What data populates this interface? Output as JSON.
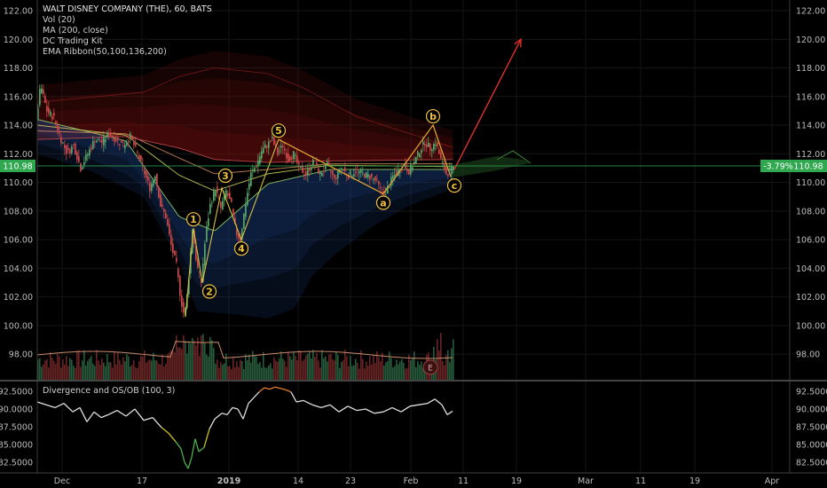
{
  "legend": {
    "title": "WALT DISNEY COMPANY (THE), 60, BATS",
    "vol": "Vol (20)",
    "ma": "MA (200, close)",
    "kit": "DC Trading Kit",
    "ribbon": "EMA Ribbon(50,100,136,200)",
    "oscillator": "Divergence and OS/OB (100, 3)"
  },
  "last_price": {
    "label": "110.98",
    "change_label": "-3.79%",
    "value": 110.98
  },
  "earnings_badge": "E",
  "colors": {
    "background": "#000000",
    "up": "#5aa36a",
    "down": "#c84a4a",
    "wave_label": "#f0c040",
    "price_badge": "#2fa84f",
    "projection_arrow": "#e0302a",
    "grid": "#151515",
    "osc_line": "#e0e0e0",
    "osc_low": "#8bc34a",
    "osc_high": "#e08030"
  },
  "chart_data": [
    {
      "type": "candlestick",
      "title": "WALT DISNEY COMPANY (THE), 60, BATS",
      "x_tick_labels": [
        "Dec",
        "17",
        "2019",
        "14",
        "23",
        "Feb",
        "11",
        "19",
        "Mar",
        "11",
        "19",
        "Apr"
      ],
      "y_tick_labels": [
        "122.00",
        "120.00",
        "118.00",
        "116.00",
        "114.00",
        "112.00",
        "110.00",
        "108.00",
        "106.00",
        "104.00",
        "102.00",
        "100.00",
        "98.00"
      ],
      "ylim": [
        96.5,
        122.5
      ],
      "price_path": [
        [
          0,
          114.3
        ],
        [
          5,
          116.8
        ],
        [
          12,
          115.0
        ],
        [
          20,
          114.5
        ],
        [
          28,
          113.0
        ],
        [
          35,
          112.0
        ],
        [
          42,
          112.6
        ],
        [
          50,
          111.0
        ],
        [
          58,
          112.0
        ],
        [
          66,
          113.0
        ],
        [
          74,
          112.8
        ],
        [
          82,
          113.4
        ],
        [
          90,
          113.0
        ],
        [
          98,
          112.6
        ],
        [
          106,
          113.2
        ],
        [
          114,
          112.0
        ],
        [
          120,
          111.0
        ],
        [
          128,
          109.6
        ],
        [
          134,
          110.6
        ],
        [
          140,
          108.4
        ],
        [
          146,
          107.6
        ],
        [
          152,
          105.6
        ],
        [
          158,
          104.2
        ],
        [
          163,
          101.8
        ],
        [
          167,
          100.6
        ],
        [
          171,
          102.6
        ],
        [
          176,
          106.8
        ],
        [
          181,
          104.2
        ],
        [
          186,
          103.0
        ],
        [
          191,
          106.4
        ],
        [
          196,
          108.4
        ],
        [
          202,
          109.6
        ],
        [
          208,
          108.2
        ],
        [
          214,
          109.4
        ],
        [
          220,
          108.4
        ],
        [
          225,
          106.5
        ],
        [
          230,
          106.0
        ],
        [
          236,
          108.6
        ],
        [
          242,
          110.6
        ],
        [
          248,
          111.2
        ],
        [
          254,
          112.2
        ],
        [
          260,
          112.6
        ],
        [
          266,
          113.0
        ],
        [
          272,
          112.0
        ],
        [
          278,
          112.6
        ],
        [
          284,
          111.6
        ],
        [
          290,
          112.0
        ],
        [
          296,
          111.0
        ],
        [
          304,
          110.6
        ],
        [
          312,
          111.4
        ],
        [
          320,
          110.6
        ],
        [
          328,
          111.2
        ],
        [
          336,
          110.2
        ],
        [
          344,
          111.0
        ],
        [
          352,
          110.5
        ],
        [
          360,
          110.8
        ],
        [
          368,
          110.6
        ],
        [
          376,
          110.4
        ],
        [
          384,
          110.0
        ],
        [
          390,
          109.2
        ],
        [
          396,
          109.6
        ],
        [
          402,
          110.4
        ],
        [
          408,
          110.8
        ],
        [
          414,
          111.2
        ],
        [
          420,
          110.8
        ],
        [
          426,
          111.4
        ],
        [
          432,
          112.2
        ],
        [
          438,
          112.8
        ],
        [
          444,
          112.4
        ],
        [
          450,
          112.8
        ],
        [
          456,
          111.6
        ],
        [
          462,
          110.6
        ],
        [
          468,
          110.9
        ]
      ],
      "ema_ribbon": [
        {
          "name": "EMA 50",
          "points": [
            [
              0,
              114.4
            ],
            [
              100,
              112.9
            ],
            [
              160,
              107.6
            ],
            [
              200,
              106.6
            ],
            [
              260,
              109.9
            ],
            [
              330,
              110.9
            ],
            [
              470,
              110.9
            ]
          ]
        },
        {
          "name": "EMA 100",
          "points": [
            [
              0,
              114.0
            ],
            [
              100,
              113.3
            ],
            [
              160,
              110.5
            ],
            [
              200,
              109.4
            ],
            [
              260,
              110.6
            ],
            [
              330,
              111.2
            ],
            [
              470,
              111.1
            ]
          ]
        },
        {
          "name": "EMA 136",
          "points": [
            [
              0,
              113.6
            ],
            [
              100,
              113.4
            ],
            [
              160,
              111.7
            ],
            [
              200,
              110.6
            ],
            [
              260,
              110.9
            ],
            [
              330,
              111.3
            ],
            [
              470,
              111.3
            ]
          ]
        },
        {
          "name": "EMA 200",
          "points": [
            [
              0,
              113.0
            ],
            [
              100,
              113.2
            ],
            [
              160,
              112.4
            ],
            [
              200,
              111.6
            ],
            [
              260,
              111.4
            ],
            [
              330,
              111.5
            ],
            [
              470,
              111.6
            ]
          ]
        }
      ],
      "upper_band": [
        [
          0,
          116.8
        ],
        [
          120,
          117.5
        ],
        [
          160,
          118.6
        ],
        [
          200,
          119.2
        ],
        [
          260,
          118.8
        ],
        [
          300,
          117.8
        ],
        [
          360,
          115.8
        ],
        [
          420,
          114.6
        ],
        [
          470,
          113.6
        ]
      ],
      "lower_band": [
        [
          0,
          112.0
        ],
        [
          60,
          110.8
        ],
        [
          120,
          109.0
        ],
        [
          160,
          104.5
        ],
        [
          180,
          101.0
        ],
        [
          220,
          100.8
        ],
        [
          260,
          100.5
        ],
        [
          290,
          101.2
        ],
        [
          310,
          103.5
        ],
        [
          340,
          105.2
        ],
        [
          380,
          107.0
        ],
        [
          420,
          108.4
        ],
        [
          470,
          109.6
        ]
      ],
      "elliott_waves": [
        {
          "label": "1",
          "x": 176,
          "price": 106.8
        },
        {
          "label": "2",
          "x": 186,
          "price": 103.0
        },
        {
          "label": "3",
          "x": 208,
          "price": 109.6
        },
        {
          "label": "4",
          "x": 230,
          "price": 106.0
        },
        {
          "label": "5",
          "x": 272,
          "price": 113.0
        },
        {
          "label": "a",
          "x": 390,
          "price": 109.2
        },
        {
          "label": "b",
          "x": 446,
          "price": 114.0
        },
        {
          "label": "c",
          "x": 466,
          "price": 110.4
        }
      ],
      "projection": {
        "from": [
          468,
          110.9
        ],
        "to": [
          545,
          120.0
        ]
      },
      "volume_ylim": [
        0,
        100
      ]
    },
    {
      "type": "line",
      "title": "Divergence and OS/OB (100, 3)",
      "y_tick_labels": [
        "92.5000",
        "90.0000",
        "87.5000",
        "85.0000",
        "82.5000"
      ],
      "ylim": [
        81.5,
        93.3
      ],
      "series": [
        {
          "name": "Divergence and OS/OB (100, 3)",
          "points": [
            [
              0,
              91.0
            ],
            [
              10,
              90.6
            ],
            [
              20,
              90.2
            ],
            [
              30,
              90.8
            ],
            [
              40,
              89.6
            ],
            [
              48,
              90.2
            ],
            [
              56,
              88.2
            ],
            [
              64,
              89.6
            ],
            [
              72,
              88.8
            ],
            [
              80,
              89.2
            ],
            [
              90,
              89.8
            ],
            [
              100,
              89.0
            ],
            [
              110,
              90.0
            ],
            [
              120,
              88.4
            ],
            [
              130,
              88.8
            ],
            [
              140,
              87.4
            ],
            [
              148,
              86.6
            ],
            [
              156,
              85.4
            ],
            [
              162,
              84.4
            ],
            [
              166,
              82.5
            ],
            [
              170,
              81.6
            ],
            [
              174,
              83.2
            ],
            [
              178,
              85.8
            ],
            [
              182,
              84.0
            ],
            [
              188,
              84.6
            ],
            [
              194,
              87.2
            ],
            [
              200,
              88.6
            ],
            [
              208,
              89.4
            ],
            [
              214,
              89.2
            ],
            [
              220,
              90.2
            ],
            [
              226,
              90.0
            ],
            [
              232,
              88.6
            ],
            [
              238,
              90.8
            ],
            [
              244,
              91.6
            ],
            [
              250,
              92.4
            ],
            [
              256,
              93.0
            ],
            [
              262,
              92.8
            ],
            [
              268,
              93.1
            ],
            [
              274,
              92.9
            ],
            [
              280,
              92.7
            ],
            [
              286,
              92.4
            ],
            [
              292,
              91.0
            ],
            [
              300,
              91.2
            ],
            [
              310,
              90.6
            ],
            [
              320,
              90.2
            ],
            [
              330,
              90.6
            ],
            [
              340,
              89.6
            ],
            [
              350,
              90.4
            ],
            [
              360,
              89.8
            ],
            [
              370,
              90.0
            ],
            [
              380,
              89.4
            ],
            [
              390,
              89.6
            ],
            [
              400,
              90.2
            ],
            [
              410,
              89.6
            ],
            [
              420,
              90.4
            ],
            [
              430,
              90.6
            ],
            [
              440,
              90.8
            ],
            [
              448,
              91.4
            ],
            [
              456,
              90.6
            ],
            [
              462,
              89.2
            ],
            [
              468,
              89.7
            ]
          ]
        }
      ]
    }
  ]
}
